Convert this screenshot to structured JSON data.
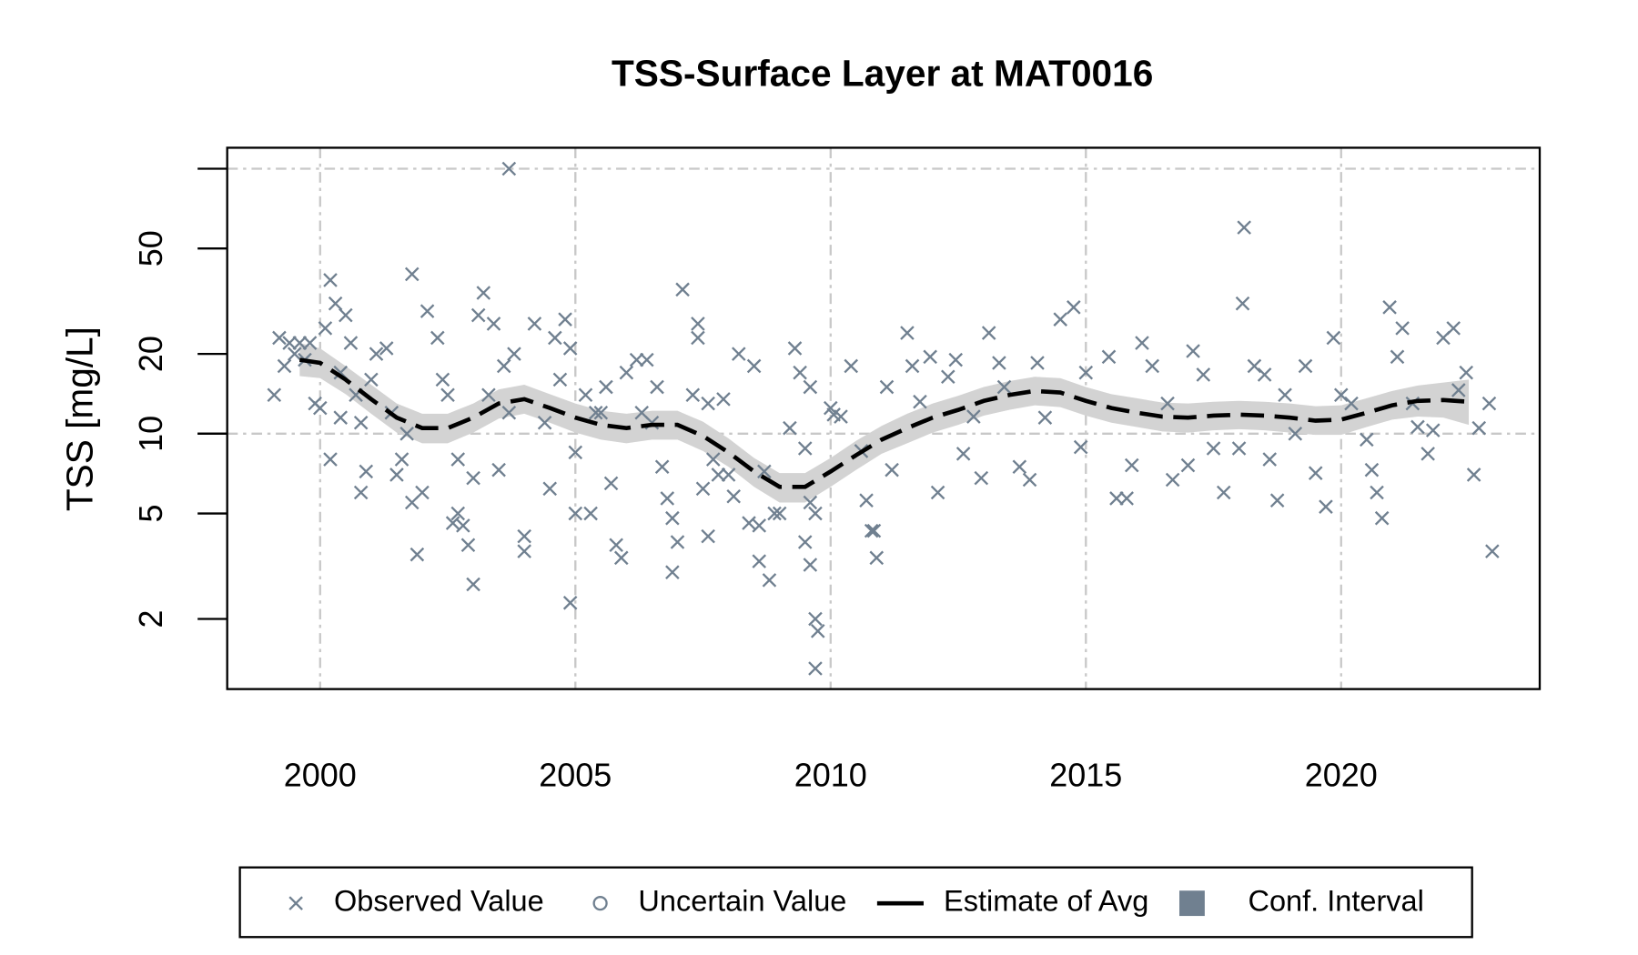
{
  "chart_data": {
    "type": "scatter",
    "title": "TSS-Surface Layer at MAT0016",
    "y_label": "TSS [mg/L]",
    "y_scale": "log",
    "xlim": [
      1998.18,
      2023.89
    ],
    "ylim": [
      1.087,
      120
    ],
    "xticks": [
      2000,
      2005,
      2010,
      2015,
      2020
    ],
    "yticks": [
      2,
      5,
      10,
      20,
      50
    ],
    "ygrid": [
      10,
      100
    ],
    "grid": true,
    "legend_position": "bottom",
    "series": [
      {
        "name": "Observed Value",
        "color": "#708090",
        "marker": "x",
        "x": [
          1999.1,
          1999.2,
          1999.3,
          1999.4,
          1999.5,
          1999.6,
          1999.7,
          1999.8,
          1999.9,
          2000.0,
          2000.1,
          2000.2,
          2000.2,
          2000.3,
          2000.4,
          2000.4,
          2000.5,
          2000.6,
          2000.7,
          2000.8,
          2000.8,
          2000.9,
          2001.0,
          2001.1,
          2001.3,
          2001.4,
          2001.5,
          2001.6,
          2001.7,
          2001.8,
          2001.8,
          2001.9,
          2002.0,
          2002.1,
          2002.3,
          2002.4,
          2002.5,
          2002.6,
          2002.7,
          2002.7,
          2002.8,
          2002.9,
          2003.0,
          2003.0,
          2003.1,
          2003.2,
          2003.3,
          2003.4,
          2003.5,
          2003.6,
          2003.7,
          2003.8,
          2003.7,
          2004.0,
          2004.0,
          2004.2,
          2004.4,
          2004.5,
          2004.6,
          2004.7,
          2004.8,
          2004.9,
          2005.0,
          2005.0,
          2004.9,
          2005.2,
          2005.3,
          2005.4,
          2005.5,
          2005.6,
          2005.7,
          2005.8,
          2005.9,
          2006.0,
          2006.2,
          2006.3,
          2006.4,
          2006.5,
          2006.6,
          2006.7,
          2006.8,
          2006.9,
          2006.9,
          2007.0,
          2007.1,
          2007.3,
          2007.4,
          2007.4,
          2007.5,
          2007.6,
          2007.6,
          2007.7,
          2007.8,
          2007.9,
          2008.0,
          2008.1,
          2008.2,
          2008.4,
          2008.5,
          2008.6,
          2008.6,
          2008.7,
          2008.8,
          2008.9,
          2009.0,
          2009.2,
          2009.3,
          2009.4,
          2009.5,
          2009.6,
          2009.6,
          2009.7,
          2009.5,
          2009.6,
          2009.7,
          2009.75,
          2009.7,
          2010.0,
          2010.06,
          2010.2,
          2010.4,
          2010.6,
          2010.7,
          2010.8,
          2010.85,
          2010.9,
          2011.1,
          2011.2,
          2011.5,
          2011.6,
          2011.75,
          2011.95,
          2012.1,
          2012.3,
          2012.45,
          2012.6,
          2012.8,
          2012.95,
          2013.1,
          2013.3,
          2013.4,
          2013.7,
          2013.9,
          2014.05,
          2014.2,
          2014.5,
          2014.76,
          2014.9,
          2015.0,
          2015.45,
          2015.6,
          2015.8,
          2015.9,
          2016.1,
          2016.3,
          2016.6,
          2016.7,
          2017.0,
          2017.1,
          2017.3,
          2017.5,
          2017.7,
          2018.0,
          2018.1,
          2018.07,
          2018.3,
          2018.5,
          2018.6,
          2018.75,
          2018.9,
          2019.1,
          2019.3,
          2019.5,
          2019.7,
          2019.85,
          2020.0,
          2020.2,
          2020.5,
          2020.6,
          2020.7,
          2020.8,
          2020.95,
          2021.1,
          2021.2,
          2021.4,
          2021.5,
          2021.7,
          2021.8,
          2022.0,
          2022.2,
          2022.3,
          2022.45,
          2022.6,
          2022.7,
          2022.9,
          2022.96
        ],
        "values": [
          14,
          23,
          18,
          22,
          20,
          22,
          19,
          22,
          13,
          12.5,
          25,
          8,
          38,
          31,
          17,
          11.5,
          28,
          22,
          14,
          11,
          6,
          7.2,
          16,
          20,
          21,
          12,
          7,
          8,
          10,
          5.5,
          40,
          3.5,
          6,
          29,
          23,
          16,
          14,
          4.6,
          5,
          8,
          4.5,
          3.8,
          2.7,
          6.8,
          28,
          34,
          14,
          26,
          7.3,
          18,
          12,
          20,
          100,
          3.6,
          4.1,
          26,
          11,
          6.2,
          23,
          16,
          27,
          21,
          8.5,
          5,
          2.3,
          14,
          5,
          12,
          12,
          15,
          6.5,
          3.8,
          3.4,
          17,
          19,
          12,
          19,
          11,
          15,
          7.5,
          5.7,
          3,
          4.8,
          3.9,
          35,
          14,
          26,
          23,
          6.2,
          13,
          4.1,
          8,
          7,
          13.5,
          7,
          5.8,
          20,
          4.6,
          18,
          4.5,
          3.3,
          7.2,
          2.8,
          5,
          5,
          10.5,
          21,
          17,
          8.8,
          5.5,
          15,
          5,
          3.9,
          3.2,
          2,
          1.8,
          1.3,
          12.5,
          11.8,
          11.6,
          18,
          8.6,
          5.6,
          4.3,
          4.3,
          3.4,
          15,
          7.3,
          24,
          18,
          13.2,
          19.5,
          6,
          16.4,
          19,
          8.4,
          11.6,
          6.8,
          24,
          18.5,
          15,
          7.5,
          6.7,
          18.5,
          11.5,
          27,
          30,
          8.9,
          17,
          19.5,
          5.7,
          5.7,
          7.6,
          22,
          18,
          13,
          6.7,
          7.6,
          20.5,
          16.7,
          8.8,
          6,
          8.8,
          60,
          31,
          18,
          16.7,
          8,
          5.6,
          14,
          10,
          18,
          7.1,
          5.3,
          23,
          14,
          13,
          9.5,
          7.3,
          6,
          4.8,
          30,
          19.5,
          25,
          13,
          10.6,
          8.4,
          10.3,
          23,
          25,
          14.6,
          17,
          7,
          10.5,
          13,
          3.6
        ]
      },
      {
        "name": "Uncertain Value",
        "color": "#708090",
        "marker": "circle",
        "x": [],
        "values": []
      },
      {
        "name": "Estimate of Avg",
        "color": "#000000",
        "marker": "dashed-line",
        "x": [
          1999.6,
          2000,
          2000.5,
          2001,
          2001.5,
          2002,
          2002.5,
          2003,
          2003.5,
          2004,
          2004.5,
          2005,
          2005.5,
          2006,
          2006.5,
          2007,
          2007.5,
          2008,
          2008.5,
          2009,
          2009.5,
          2010,
          2010.5,
          2011,
          2011.5,
          2012,
          2012.5,
          2013,
          2013.5,
          2014,
          2014.5,
          2015,
          2015.5,
          2016,
          2016.5,
          2017,
          2017.5,
          2018,
          2018.5,
          2019,
          2019.5,
          2020,
          2020.5,
          2021,
          2021.5,
          2022,
          2022.5
        ],
        "values": [
          19,
          18.5,
          16,
          13.5,
          11.5,
          10.5,
          10.5,
          11.5,
          13,
          13.5,
          12.5,
          11.5,
          10.8,
          10.5,
          10.8,
          10.8,
          9.8,
          8.5,
          7.2,
          6.3,
          6.3,
          7.2,
          8.3,
          9.5,
          10.5,
          11.5,
          12.3,
          13.3,
          14,
          14.5,
          14.3,
          13.3,
          12.5,
          12,
          11.6,
          11.5,
          11.7,
          11.8,
          11.7,
          11.5,
          11.2,
          11.3,
          12,
          12.8,
          13.3,
          13.4,
          13.2
        ]
      },
      {
        "name": "Conf. Interval",
        "color": "#708090",
        "band_color": "#d3d3d3",
        "marker": "square",
        "x": [
          1999.6,
          2000,
          2000.5,
          2001,
          2001.5,
          2002,
          2002.5,
          2003,
          2003.5,
          2004,
          2004.5,
          2005,
          2005.5,
          2006,
          2006.5,
          2007,
          2007.5,
          2008,
          2008.5,
          2009,
          2009.5,
          2010,
          2010.5,
          2011,
          2011.5,
          2012,
          2012.5,
          2013,
          2013.5,
          2014,
          2014.5,
          2015,
          2015.5,
          2016,
          2016.5,
          2017,
          2017.5,
          2018,
          2018.5,
          2019,
          2019.5,
          2020,
          2020.5,
          2021,
          2021.5,
          2022,
          2022.5
        ],
        "upper": [
          22,
          21,
          18,
          15.3,
          13,
          11.9,
          11.9,
          13,
          14.7,
          15.3,
          14.1,
          13,
          12.2,
          11.9,
          12.2,
          12.2,
          11.1,
          9.6,
          8.1,
          7.1,
          7.1,
          8.1,
          9.4,
          10.7,
          11.9,
          13,
          13.9,
          15,
          15.8,
          16.4,
          16.2,
          15,
          14.1,
          13.6,
          13.1,
          13,
          13.2,
          13.3,
          13.2,
          13,
          12.7,
          12.8,
          13.6,
          14.5,
          15.2,
          15.6,
          16
        ],
        "lower": [
          16.5,
          16.2,
          14.1,
          11.9,
          10.1,
          9.2,
          9.2,
          10.1,
          11.4,
          11.9,
          11,
          10.1,
          9.5,
          9.2,
          9.5,
          9.5,
          8.6,
          7.5,
          6.3,
          5.5,
          5.5,
          6.3,
          7.3,
          8.4,
          9.2,
          10.1,
          10.8,
          11.7,
          12.3,
          12.8,
          12.6,
          11.7,
          11,
          10.6,
          10.2,
          10.1,
          10.3,
          10.4,
          10.3,
          10.1,
          9.9,
          9.9,
          10.6,
          11.3,
          11.6,
          11.5,
          10.8
        ]
      }
    ]
  }
}
